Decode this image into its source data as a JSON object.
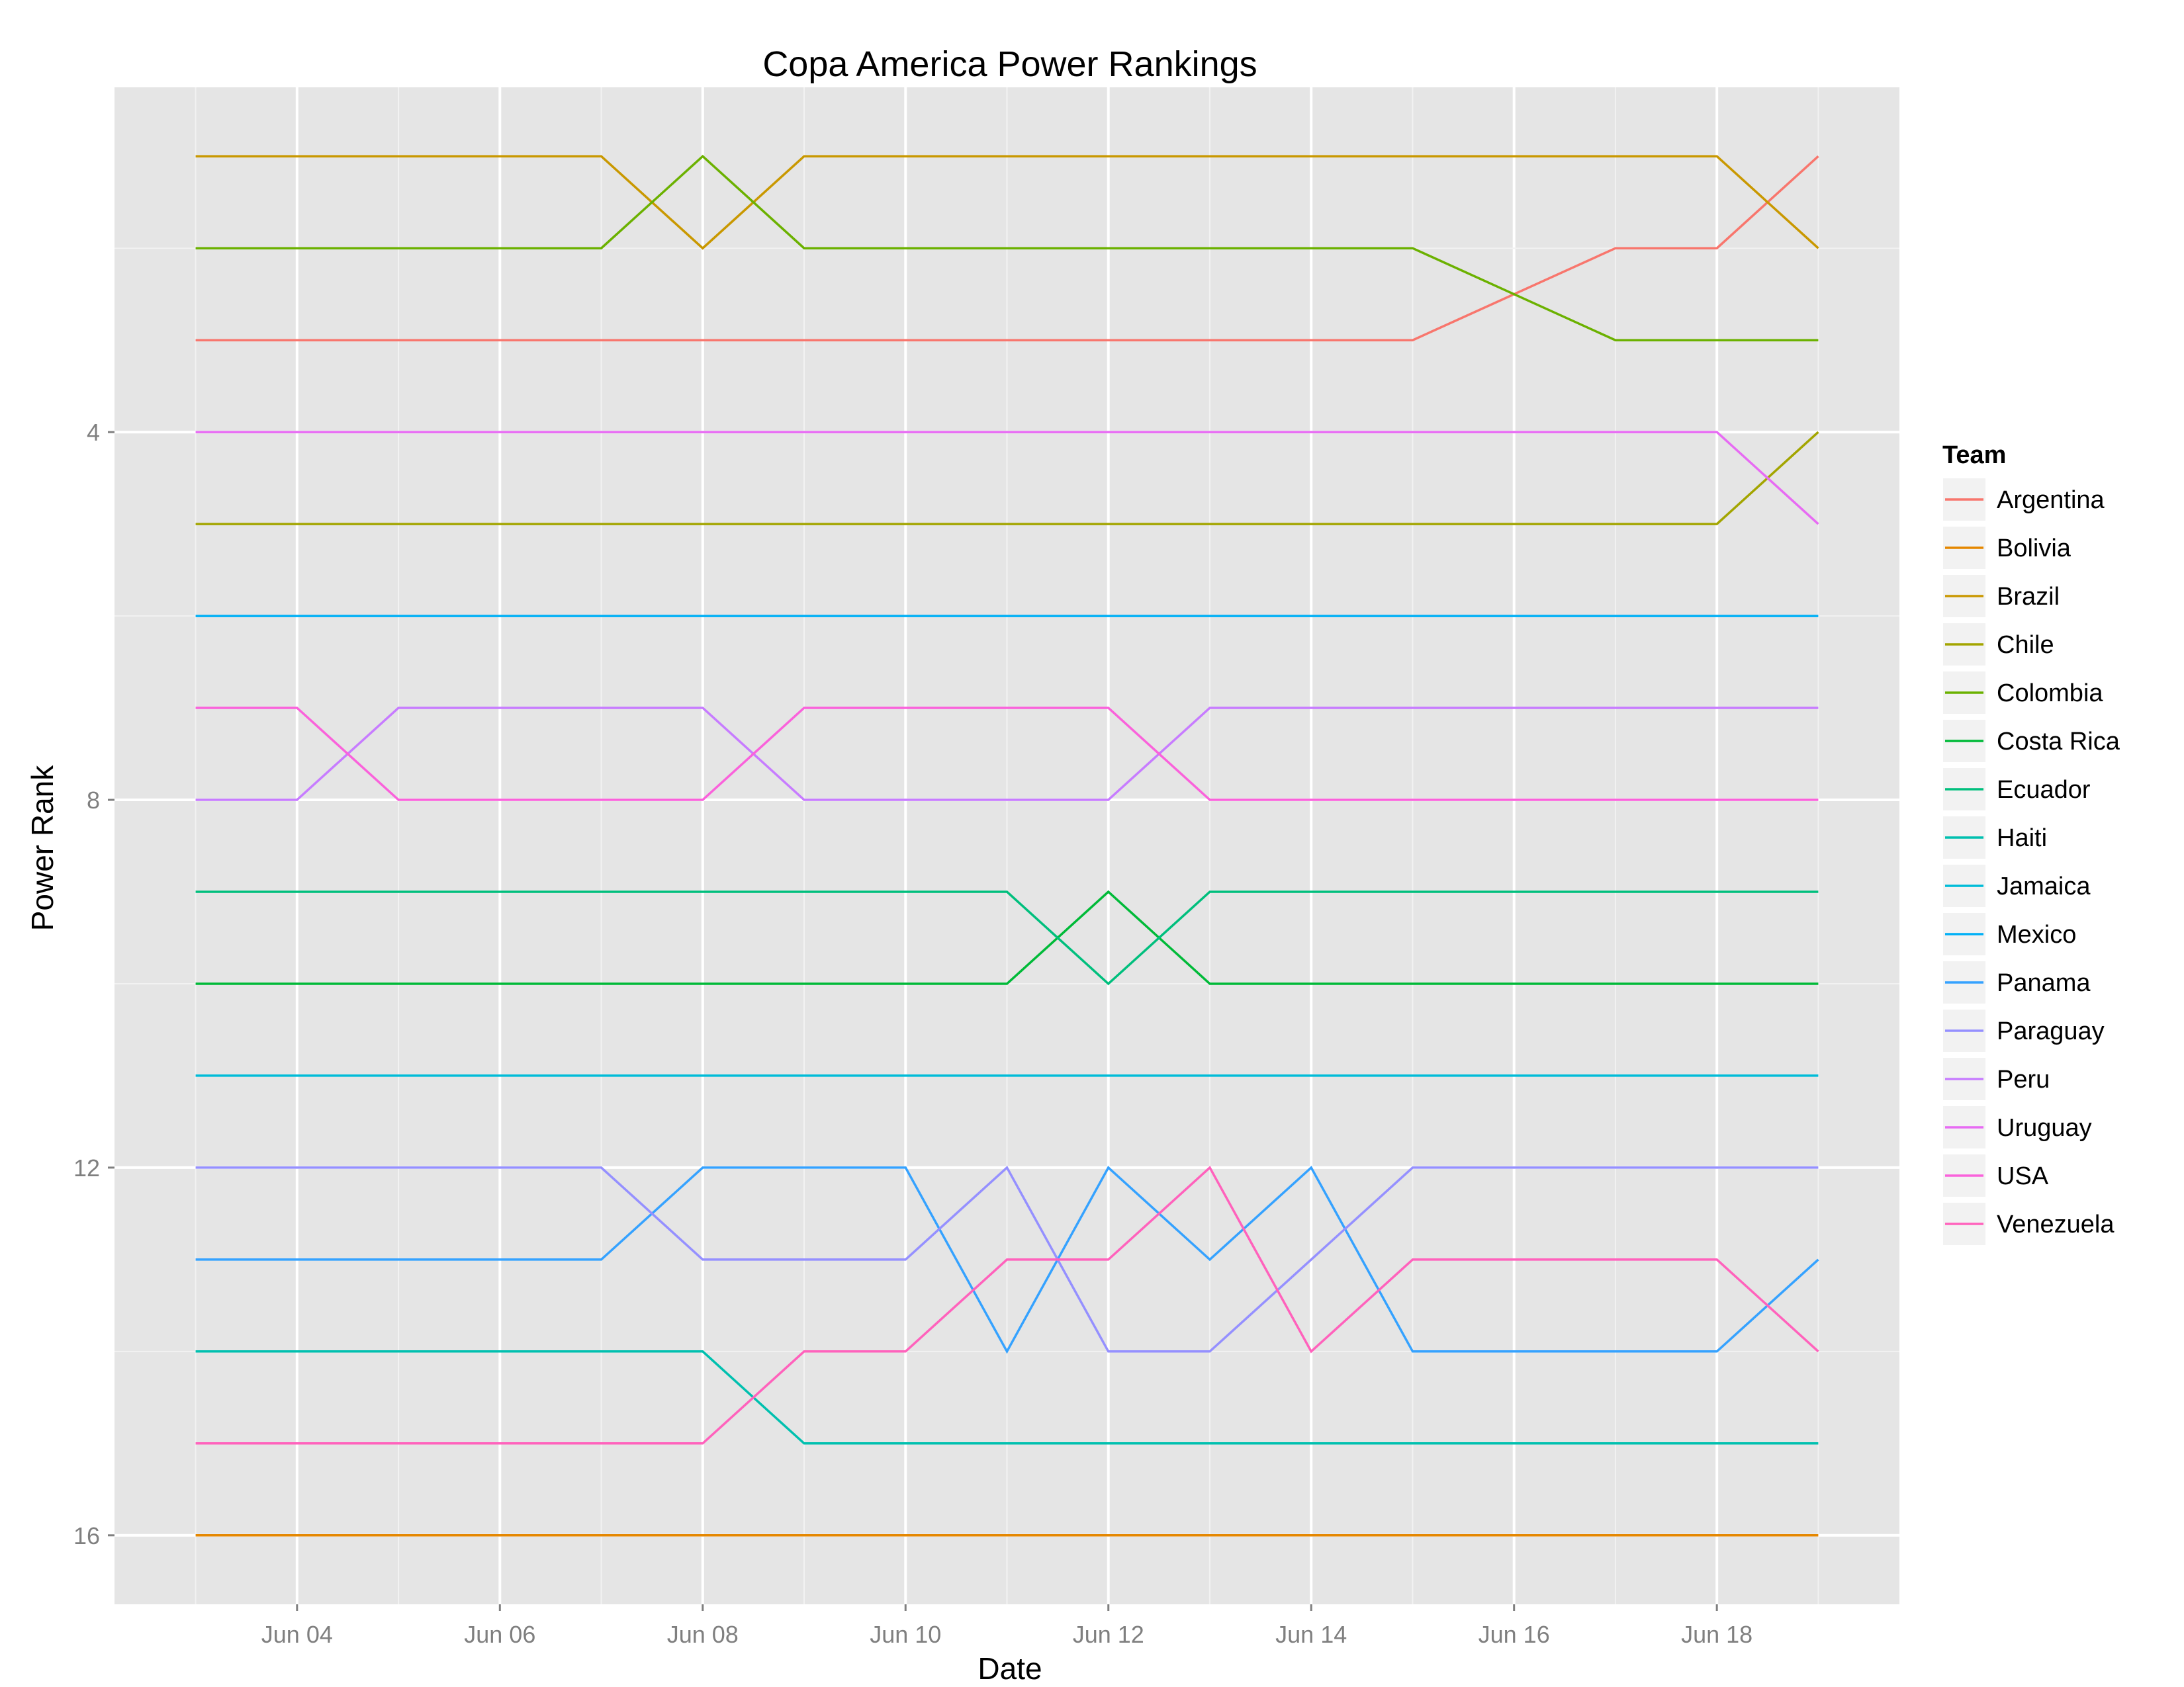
{
  "chart_data": {
    "type": "line",
    "title": "Copa America Power Rankings",
    "xlabel": "Date",
    "ylabel": "Power Rank",
    "x": [
      "Jun 03",
      "Jun 04",
      "Jun 05",
      "Jun 06",
      "Jun 07",
      "Jun 08",
      "Jun 09",
      "Jun 10",
      "Jun 11",
      "Jun 12",
      "Jun 13",
      "Jun 14",
      "Jun 15",
      "Jun 16",
      "Jun 17",
      "Jun 18",
      "Jun 19"
    ],
    "x_ticks": [
      "Jun 04",
      "Jun 06",
      "Jun 08",
      "Jun 10",
      "Jun 12",
      "Jun 14",
      "Jun 16",
      "Jun 18"
    ],
    "y_ticks": [
      4,
      8,
      12,
      16
    ],
    "ylim": [
      0.25,
      16.75
    ],
    "y_reversed": true,
    "grid": true,
    "legend_title": "Team",
    "legend_position": "right",
    "series": [
      {
        "name": "Argentina",
        "color": "#F8766D",
        "values": [
          3,
          3,
          3,
          3,
          3,
          3,
          3,
          3,
          3,
          3,
          3,
          3,
          3,
          2.5,
          2,
          2,
          1
        ]
      },
      {
        "name": "Bolivia",
        "color": "#E58700",
        "values": [
          16,
          16,
          16,
          16,
          16,
          16,
          16,
          16,
          16,
          16,
          16,
          16,
          16,
          16,
          16,
          16,
          16
        ]
      },
      {
        "name": "Brazil",
        "color": "#C99800",
        "values": [
          1,
          1,
          1,
          1,
          1,
          2,
          1,
          1,
          1,
          1,
          1,
          1,
          1,
          1,
          1,
          1,
          2
        ]
      },
      {
        "name": "Chile",
        "color": "#A3A500",
        "values": [
          5,
          5,
          5,
          5,
          5,
          5,
          5,
          5,
          5,
          5,
          5,
          5,
          5,
          5,
          5,
          5,
          4
        ]
      },
      {
        "name": "Colombia",
        "color": "#6BB100",
        "values": [
          2,
          2,
          2,
          2,
          2,
          1,
          2,
          2,
          2,
          2,
          2,
          2,
          2,
          2.5,
          3,
          3,
          3
        ]
      },
      {
        "name": "Costa Rica",
        "color": "#00BA38",
        "values": [
          10,
          10,
          10,
          10,
          10,
          10,
          10,
          10,
          10,
          9,
          10,
          10,
          10,
          10,
          10,
          10,
          10
        ]
      },
      {
        "name": "Ecuador",
        "color": "#00BF7D",
        "values": [
          9,
          9,
          9,
          9,
          9,
          9,
          9,
          9,
          9,
          10,
          9,
          9,
          9,
          9,
          9,
          9,
          9
        ]
      },
      {
        "name": "Haiti",
        "color": "#00C0AF",
        "values": [
          14,
          14,
          14,
          14,
          14,
          14,
          15,
          15,
          15,
          15,
          15,
          15,
          15,
          15,
          15,
          15,
          15
        ]
      },
      {
        "name": "Jamaica",
        "color": "#00BCD8",
        "values": [
          11,
          11,
          11,
          11,
          11,
          11,
          11,
          11,
          11,
          11,
          11,
          11,
          11,
          11,
          11,
          11,
          11
        ]
      },
      {
        "name": "Mexico",
        "color": "#00B0F6",
        "values": [
          6,
          6,
          6,
          6,
          6,
          6,
          6,
          6,
          6,
          6,
          6,
          6,
          6,
          6,
          6,
          6,
          6
        ]
      },
      {
        "name": "Panama",
        "color": "#35A2FF",
        "values": [
          13,
          13,
          13,
          13,
          13,
          12,
          12,
          12,
          14,
          12,
          13,
          12,
          14,
          14,
          14,
          14,
          13
        ]
      },
      {
        "name": "Paraguay",
        "color": "#9590FF",
        "values": [
          12,
          12,
          12,
          12,
          12,
          13,
          13,
          13,
          12,
          14,
          14,
          13,
          12,
          12,
          12,
          12,
          12
        ]
      },
      {
        "name": "Peru",
        "color": "#C77CFF",
        "values": [
          8,
          8,
          7,
          7,
          7,
          7,
          8,
          8,
          8,
          8,
          7,
          7,
          7,
          7,
          7,
          7,
          7
        ]
      },
      {
        "name": "Uruguay",
        "color": "#E76BF3",
        "values": [
          4,
          4,
          4,
          4,
          4,
          4,
          4,
          4,
          4,
          4,
          4,
          4,
          4,
          4,
          4,
          4,
          5
        ]
      },
      {
        "name": "USA",
        "color": "#FA62DB",
        "values": [
          7,
          7,
          8,
          8,
          8,
          8,
          7,
          7,
          7,
          7,
          8,
          8,
          8,
          8,
          8,
          8,
          8
        ]
      },
      {
        "name": "Venezuela",
        "color": "#FF62BC",
        "values": [
          15,
          15,
          15,
          15,
          15,
          15,
          14,
          14,
          13,
          13,
          12,
          14,
          13,
          13,
          13,
          13,
          14
        ]
      }
    ]
  }
}
